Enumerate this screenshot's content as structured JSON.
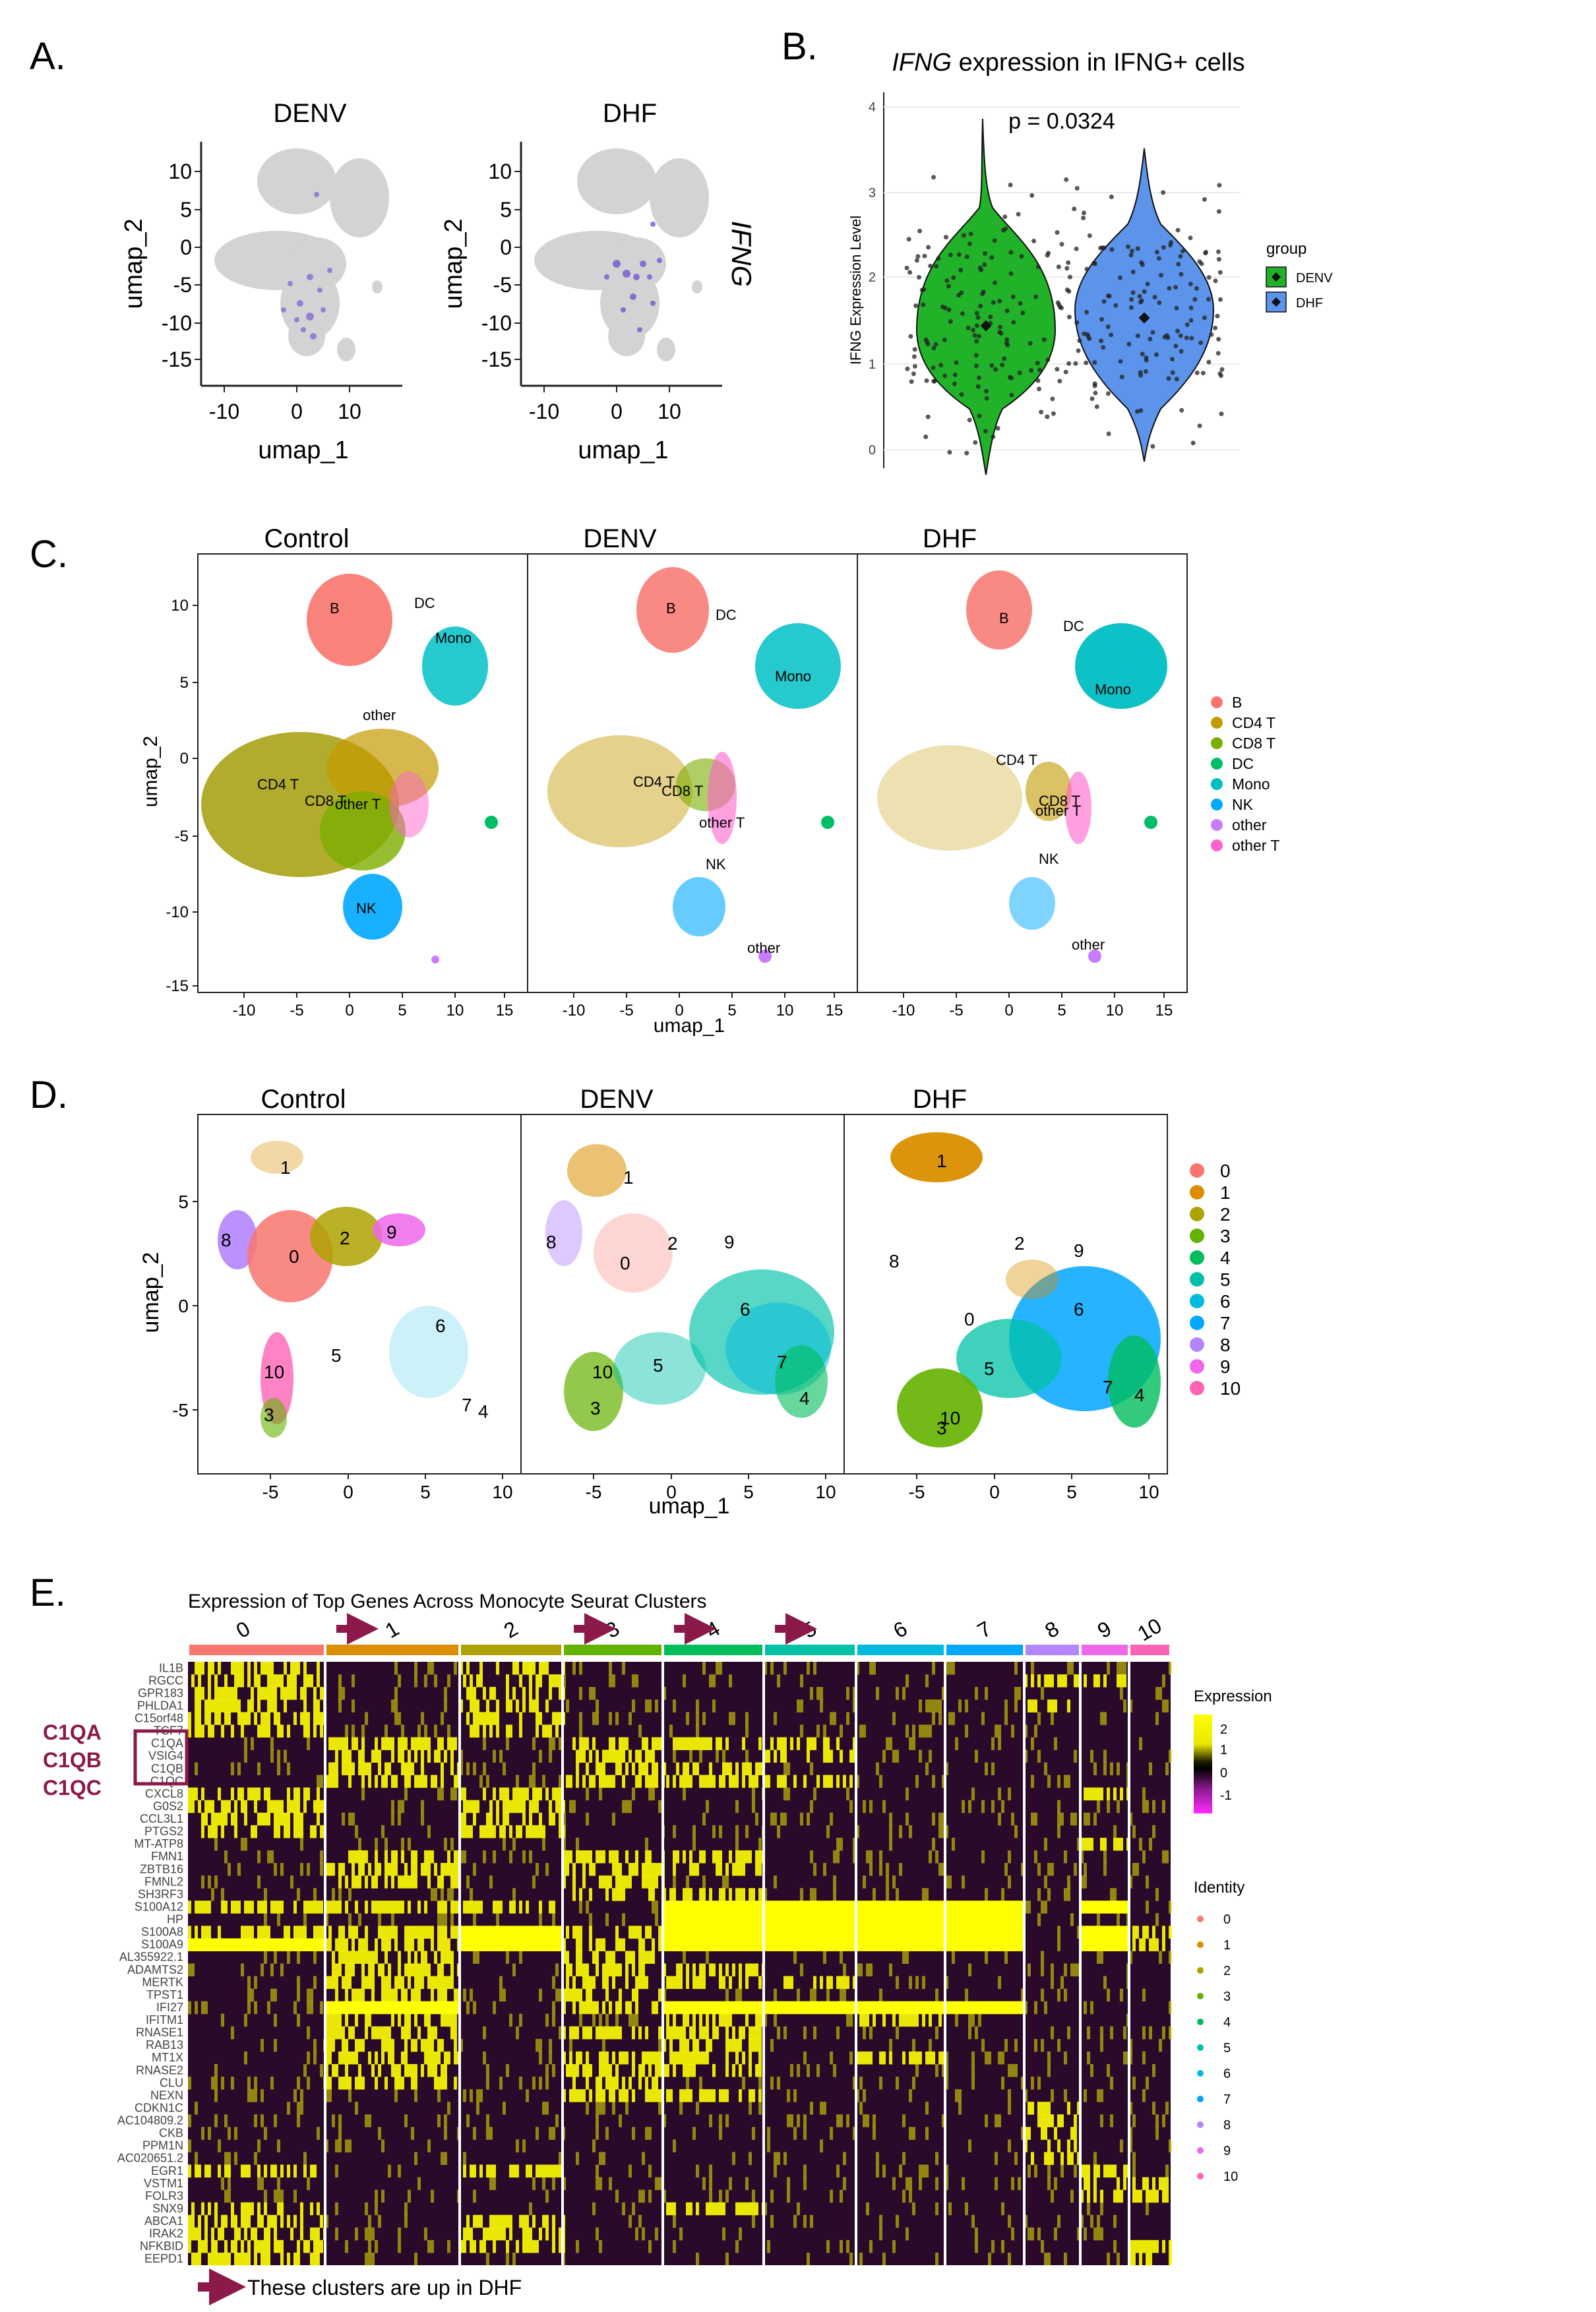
{
  "panel_letters": {
    "a": "A.",
    "b": "B.",
    "c": "C.",
    "d": "D.",
    "e": "E."
  },
  "panel_a": {
    "subtitles": [
      "DENV",
      "DHF"
    ],
    "xlabel": "umap_1",
    "ylabel": "umap_2",
    "gene_label": "IFNG",
    "x_ticks": [
      "-10",
      "0",
      "10"
    ],
    "y_ticks": [
      "10",
      "5",
      "0",
      "-5",
      "-10",
      "-15"
    ]
  },
  "panel_b": {
    "title_italic": "IFNG",
    "title_rest": " expression in IFNG+ cells",
    "pvalue": "p = 0.0324",
    "ylabel": "IFNG Expression Level",
    "y_ticks": [
      "0",
      "1",
      "2",
      "3",
      "4"
    ],
    "legend_title": "group",
    "legend": [
      {
        "label": "DENV",
        "color": "#22b22a"
      },
      {
        "label": "DHF",
        "color": "#5b94ea"
      }
    ]
  },
  "panel_c": {
    "subtitles": [
      "Control",
      "DENV",
      "DHF"
    ],
    "xlabel": "umap_1",
    "ylabel": "umap_2",
    "x_ticks": [
      "-10",
      "-5",
      "0",
      "5",
      "10",
      "15"
    ],
    "y_ticks": [
      "10",
      "5",
      "0",
      "-5",
      "-10",
      "-15"
    ],
    "legend": [
      {
        "label": "B",
        "color": "#f8766d"
      },
      {
        "label": "CD4 T",
        "color": "#c49a00"
      },
      {
        "label": "CD8 T",
        "color": "#7cae00"
      },
      {
        "label": "DC",
        "color": "#00be67"
      },
      {
        "label": "Mono",
        "color": "#00bfc4"
      },
      {
        "label": "NK",
        "color": "#00a9ff"
      },
      {
        "label": "other",
        "color": "#c77cff"
      },
      {
        "label": "other T",
        "color": "#ff61cc"
      }
    ],
    "cluster_labels": {
      "b": "B",
      "dc": "DC",
      "mono": "Mono",
      "other": "other",
      "cd4": "CD4 T",
      "cd8": "CD8 T",
      "othert": "other T",
      "nk": "NK"
    }
  },
  "panel_d": {
    "subtitles": [
      "Control",
      "DENV",
      "DHF"
    ],
    "xlabel": "umap_1",
    "ylabel": "umap_2",
    "x_ticks": [
      "-5",
      "0",
      "5",
      "10"
    ],
    "y_ticks": [
      "5",
      "0",
      "-5"
    ],
    "legend": [
      {
        "label": "0",
        "color": "#f8766d"
      },
      {
        "label": "1",
        "color": "#db8e00"
      },
      {
        "label": "2",
        "color": "#aea200"
      },
      {
        "label": "3",
        "color": "#64b200"
      },
      {
        "label": "4",
        "color": "#00bd5c"
      },
      {
        "label": "5",
        "color": "#00c1a7"
      },
      {
        "label": "6",
        "color": "#00bade"
      },
      {
        "label": "7",
        "color": "#00a6ff"
      },
      {
        "label": "8",
        "color": "#b385ff"
      },
      {
        "label": "9",
        "color": "#ef67eb"
      },
      {
        "label": "10",
        "color": "#ff63b6"
      }
    ]
  },
  "panel_e": {
    "title": "Expression of Top Genes Across Monocyte Seurat Clusters",
    "clusters": [
      "0",
      "1",
      "2",
      "3",
      "4",
      "5",
      "6",
      "7",
      "8",
      "9",
      "10"
    ],
    "up_in_dhf_clusters": [
      "1",
      "3",
      "4",
      "5"
    ],
    "genes": [
      "IL1B",
      "RGCC",
      "GPR183",
      "PHLDA1",
      "C15orf48",
      "TCF7",
      "C1QA",
      "VSIG4",
      "C1QB",
      "C1QC",
      "CXCL8",
      "G0S2",
      "CCL3L1",
      "PTGS2",
      "MT-ATP8",
      "FMN1",
      "ZBTB16",
      "FMNL2",
      "SH3RF3",
      "S100A12",
      "HP",
      "S100A8",
      "S100A9",
      "AL355922.1",
      "ADAMTS2",
      "MERTK",
      "TPST1",
      "IFI27",
      "IFITM1",
      "RNASE1",
      "RAB13",
      "MT1X",
      "RNASE2",
      "CLU",
      "NEXN",
      "CDKN1C",
      "AC104809.2",
      "CKB",
      "PPM1N",
      "AC020651.2",
      "EGR1",
      "VSTM1",
      "FOLR3",
      "SNX9",
      "ABCA1",
      "IRAK2",
      "NFKBID",
      "EEPD1"
    ],
    "highlight_genes": [
      "C1QA",
      "C1QB",
      "C1QC"
    ],
    "highlight_color": "#8b1a4a",
    "expression_legend_title": "Expression",
    "expression_ticks": [
      "2",
      "1",
      "0",
      "-1"
    ],
    "identity_legend_title": "Identity",
    "footnote": "These clusters are up in DHF"
  }
}
